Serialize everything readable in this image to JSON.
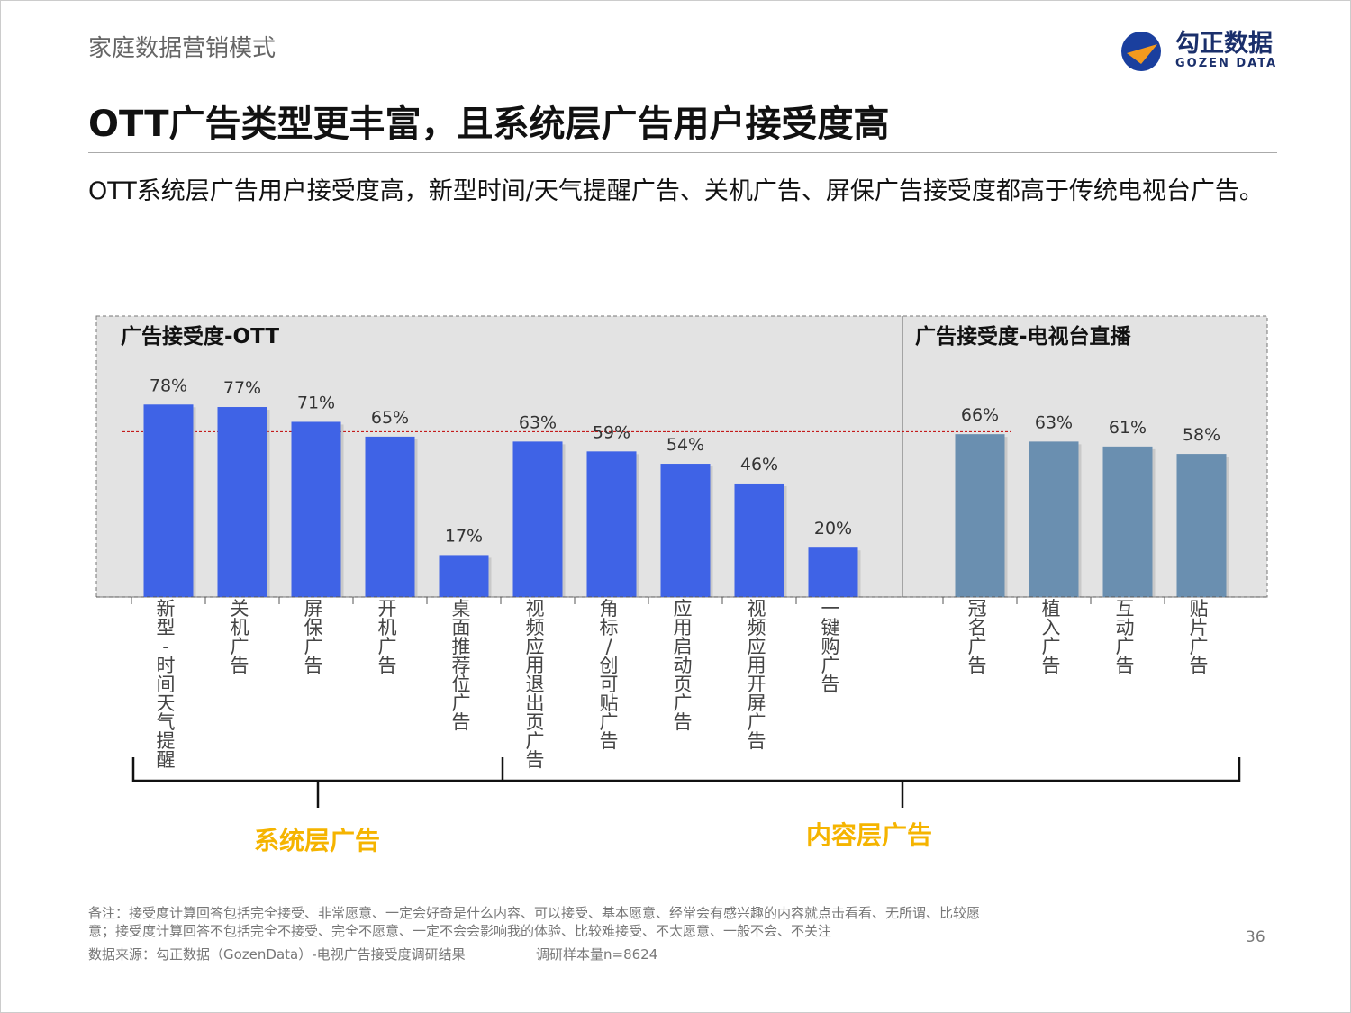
{
  "header": {
    "section": "家庭数据营销模式",
    "logo_cn": "勾正数据",
    "logo_en": "GOZEN DATA"
  },
  "title": "OTT广告类型更丰富，且系统层广告用户接受度高",
  "subtitle": "OTT系统层广告用户接受度高，新型时间/天气提醒广告、关机广告、屏保广告接受度都高于传统电视台广告。",
  "chart_data": {
    "type": "bar",
    "panels": [
      {
        "title": "广告接受度-OTT",
        "color": "#3f63e6",
        "categories": [
          "新型-时间天气提醒",
          "关机广告",
          "屏保广告",
          "开机广告",
          "桌面推荐位广告",
          "视频应用退出页广告",
          "角标/创可贴广告",
          "应用启动页广告",
          "视频应用开屏广告",
          "一键购广告"
        ],
        "values": [
          78,
          77,
          71,
          65,
          17,
          63,
          59,
          54,
          46,
          20
        ],
        "labels": [
          "78%",
          "77%",
          "71%",
          "65%",
          "17%",
          "63%",
          "59%",
          "54%",
          "46%",
          "20%"
        ]
      },
      {
        "title": "广告接受度-电视台直播",
        "color": "#6a8fb0",
        "categories": [
          "冠名广告",
          "植入广告",
          "互动广告",
          "贴片广告"
        ],
        "values": [
          66,
          63,
          61,
          58
        ],
        "labels": [
          "66%",
          "63%",
          "61%",
          "58%"
        ]
      }
    ],
    "reference_line": {
      "style": "dashed",
      "color": "#c00000"
    },
    "groups": [
      {
        "label": "系统层广告",
        "color": "#f5b400"
      },
      {
        "label": "内容层广告",
        "color": "#f5b400"
      }
    ],
    "ylim": [
      0,
      100
    ]
  },
  "footer": {
    "note1": "备注：接受度计算回答包括完全接受、非常愿意、一定会好奇是什么内容、可以接受、基本愿意、经常会有感兴趣的内容就点击看看、无所谓、比较愿",
    "note2": "意；接受度计算回答不包括完全不接受、完全不愿意、一定不会会影响我的体验、比较难接受、不太愿意、一般不会、不关注",
    "source": "数据来源：勾正数据（GozenData）-电视广告接受度调研结果",
    "sample": "调研样本量n=8624",
    "page": "36"
  }
}
